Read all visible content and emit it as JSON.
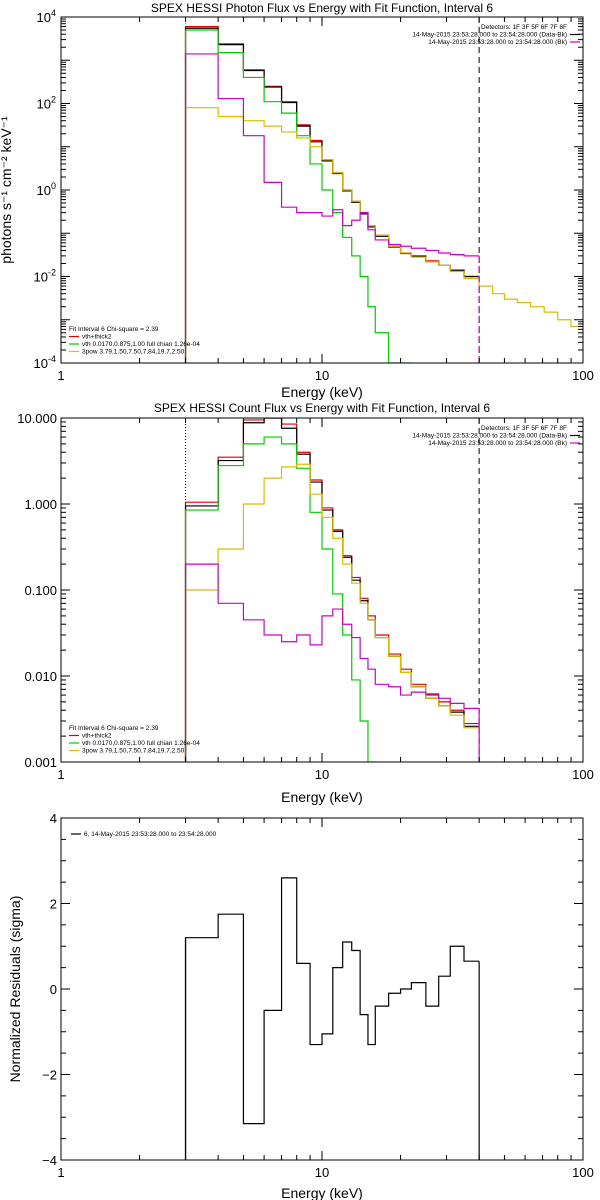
{
  "colors": {
    "black": "#000000",
    "red": "#dd0000",
    "green": "#00cc00",
    "yellow": "#ddbb00",
    "magenta": "#cc00cc"
  },
  "chart_data": [
    {
      "type": "line",
      "title": "SPEX HESSI Photon Flux vs Energy with Fit Function, Interval 6",
      "xlabel": "Energy (keV)",
      "ylabel": "photons s⁻¹ cm⁻² keV⁻¹",
      "xscale": "log",
      "yscale": "log",
      "xlim": [
        1,
        100
      ],
      "ylim": [
        0.0001,
        10000
      ],
      "xticks": [
        {
          "v": 1,
          "label": "1"
        },
        {
          "v": 10,
          "label": "10"
        },
        {
          "v": 100,
          "label": "100"
        }
      ],
      "yticks": [
        {
          "v": 0.0001,
          "base": "10",
          "exp": "-4"
        },
        {
          "v": 0.01,
          "base": "10",
          "exp": "-2"
        },
        {
          "v": 1,
          "base": "10",
          "exp": "0"
        },
        {
          "v": 100,
          "base": "10",
          "exp": "2"
        },
        {
          "v": 10000,
          "base": "10",
          "exp": "4"
        }
      ],
      "legend_tr": [
        {
          "text": "Detectors: 1F 3F 5F 6F 7F 8F",
          "color": ""
        },
        {
          "text": "14-May-2015 23:53:28.000 to 23:54:28.000 (Data-Bk)",
          "color": "#000000"
        },
        {
          "text": "14-May-2015 23:53:28.000 to 23:54:28.000 (Bk)",
          "color": "#cc00cc"
        }
      ],
      "legend_bl": [
        {
          "text": "Fit Interval 6   Chi-square = 2.39",
          "color": ""
        },
        {
          "text": "vth+thick2",
          "color": "#dd0000"
        },
        {
          "text": "vth 0.0170,0.875,1.00  full chian 1.26e-04",
          "color": "#00cc00"
        },
        {
          "text": "3pow 3.79,1.50,7.50,7.84,19.7,2.50",
          "color": "#ddbb00"
        }
      ],
      "vlines": [
        {
          "x": 3,
          "color": "#000000",
          "dash": "1,2"
        },
        {
          "x": 3,
          "color": "#ddbb00",
          "dash": "1,2"
        },
        {
          "x": 40,
          "color": "#000000",
          "dash": "6,4"
        }
      ],
      "series": [
        {
          "color": "#dd0000",
          "edges": [
            3,
            4,
            5,
            6,
            7,
            8,
            9,
            10,
            11,
            12,
            13,
            14,
            15,
            16,
            18,
            20,
            22,
            25,
            28,
            31,
            35,
            40
          ],
          "values": [
            6000,
            2400,
            600,
            250,
            110,
            32,
            14,
            5,
            2.5,
            1,
            0.55,
            0.3,
            0.15,
            0.09,
            0.05,
            0.035,
            0.03,
            0.023,
            0.018,
            0.014,
            0.01
          ]
        },
        {
          "color": "#000000",
          "edges": [
            3,
            4,
            5,
            6,
            7,
            8,
            9,
            10,
            11,
            12,
            13,
            14,
            15,
            16,
            18,
            20,
            22,
            25,
            28,
            31,
            35,
            40
          ],
          "values": [
            5500,
            2300,
            580,
            240,
            105,
            30,
            13,
            4.7,
            2.4,
            0.95,
            0.52,
            0.28,
            0.14,
            0.085,
            0.048,
            0.034,
            0.029,
            0.022,
            0.018,
            0.014,
            0.01
          ]
        },
        {
          "color": "#00cc00",
          "edges": [
            3,
            4,
            5,
            6,
            7,
            8,
            9,
            10,
            11,
            12,
            13,
            14,
            15,
            16,
            18,
            20,
            22
          ],
          "values": [
            5000,
            1500,
            400,
            110,
            60,
            18,
            4,
            1,
            0.3,
            0.08,
            0.03,
            0.01,
            0.002,
            0.0005,
            0.0001,
            5e-05
          ]
        },
        {
          "color": "#ddbb00",
          "edges": [
            3,
            4,
            5,
            6,
            7,
            8,
            9,
            10,
            11,
            12,
            13,
            14,
            15,
            16,
            18,
            20,
            22,
            25,
            28,
            31,
            35,
            40,
            45,
            50,
            56,
            63,
            71,
            80,
            90,
            100
          ],
          "values": [
            80,
            50,
            40,
            30,
            22,
            16,
            10,
            5,
            2.5,
            1,
            0.55,
            0.3,
            0.15,
            0.09,
            0.05,
            0.035,
            0.028,
            0.022,
            0.018,
            0.013,
            0.009,
            0.006,
            0.004,
            0.003,
            0.0025,
            0.002,
            0.0015,
            0.001,
            0.0007
          ]
        },
        {
          "color": "#cc00cc",
          "edges": [
            3,
            4,
            5,
            6,
            7,
            8,
            9,
            10,
            11,
            12,
            13,
            14,
            15,
            16,
            18,
            20,
            22,
            25,
            28,
            31,
            35,
            40
          ],
          "values": [
            1400,
            130,
            18,
            1.5,
            0.4,
            0.3,
            0.3,
            0.25,
            0.35,
            0.15,
            0.2,
            0.3,
            0.12,
            0.07,
            0.055,
            0.05,
            0.045,
            0.04,
            0.035,
            0.032,
            0.03
          ]
        }
      ],
      "series_end_drop": [
        {
          "color": "#cc00cc",
          "x": 40,
          "dash": "6,4"
        }
      ]
    },
    {
      "type": "line",
      "title": "SPEX HESSI Count Flux vs Energy with Fit Function, Interval 6",
      "xlabel": "Energy (keV)",
      "ylabel": "",
      "xscale": "log",
      "yscale": "log",
      "xlim": [
        1,
        100
      ],
      "ylim": [
        0.001,
        10
      ],
      "xticks": [
        {
          "v": 1,
          "label": "1"
        },
        {
          "v": 10,
          "label": "10"
        },
        {
          "v": 100,
          "label": "100"
        }
      ],
      "yticks": [
        {
          "v": 0.001,
          "label": "0.001"
        },
        {
          "v": 0.01,
          "label": "0.010"
        },
        {
          "v": 0.1,
          "label": "0.100"
        },
        {
          "v": 1,
          "label": "1.000"
        },
        {
          "v": 10,
          "label": "10.000"
        }
      ],
      "legend_tr": [
        {
          "text": "Detectors: 1F 3F 5F 6F 7F 8F",
          "color": ""
        },
        {
          "text": "14-May-2015 23:53:28.000 to 23:54:28.000 (Data-Bk)",
          "color": "#000000"
        },
        {
          "text": "14-May-2015 23:53:28.000 to 23:54:28.000 (Bk)",
          "color": "#cc00cc"
        }
      ],
      "legend_bl": [
        {
          "text": "Fit Interval 6   Chi-square = 2.39",
          "color": ""
        },
        {
          "text": "vth+thick2",
          "color": "#dd0000"
        },
        {
          "text": "vth 0.0170,0.875,1.00  full chian 1.26e-04",
          "color": "#00cc00"
        },
        {
          "text": "3pow 3.79,1.50,7.50,7.84,19.7,2.50",
          "color": "#ddbb00"
        }
      ],
      "vlines": [
        {
          "x": 3,
          "color": "#000000",
          "dash": "1,2"
        },
        {
          "x": 40,
          "color": "#000000",
          "dash": "6,4"
        }
      ],
      "series": [
        {
          "color": "#dd0000",
          "edges": [
            3,
            4,
            5,
            6,
            7,
            8,
            9,
            10,
            11,
            12,
            13,
            14,
            15,
            16,
            18,
            20,
            22,
            25,
            28,
            31,
            35,
            40
          ],
          "values": [
            1.05,
            3.5,
            9.5,
            11,
            8.5,
            4,
            1.9,
            0.9,
            0.5,
            0.25,
            0.14,
            0.08,
            0.05,
            0.03,
            0.018,
            0.012,
            0.008,
            0.006,
            0.005,
            0.004,
            0.0028
          ]
        },
        {
          "color": "#000000",
          "edges": [
            3,
            4,
            5,
            6,
            7,
            8,
            9,
            10,
            11,
            12,
            13,
            14,
            15,
            16,
            18,
            20,
            22,
            25,
            28,
            31,
            35,
            40
          ],
          "values": [
            0.95,
            3.2,
            8.8,
            10.2,
            7.6,
            3.8,
            1.8,
            0.85,
            0.48,
            0.24,
            0.13,
            0.075,
            0.045,
            0.028,
            0.017,
            0.011,
            0.0075,
            0.0055,
            0.0045,
            0.0038,
            0.0026
          ]
        },
        {
          "color": "#00cc00",
          "edges": [
            3,
            4,
            5,
            6,
            7,
            8,
            9,
            10,
            11,
            12,
            13,
            14,
            15,
            16
          ],
          "values": [
            0.85,
            2.8,
            5,
            6,
            5,
            2.6,
            0.8,
            0.3,
            0.09,
            0.03,
            0.009,
            0.003,
            0.0008
          ]
        },
        {
          "color": "#ddbb00",
          "edges": [
            3,
            4,
            5,
            6,
            7,
            8,
            9,
            10,
            11,
            12,
            13,
            14,
            15,
            16,
            18,
            20,
            22,
            25,
            28,
            31,
            35,
            40
          ],
          "values": [
            0.1,
            0.3,
            1,
            2,
            2.7,
            2.9,
            1.3,
            0.7,
            0.4,
            0.2,
            0.12,
            0.07,
            0.045,
            0.028,
            0.017,
            0.011,
            0.0075,
            0.0055,
            0.0045,
            0.0035,
            0.0025
          ]
        },
        {
          "color": "#cc00cc",
          "edges": [
            3,
            4,
            5,
            6,
            7,
            8,
            9,
            10,
            11,
            12,
            13,
            14,
            15,
            16,
            18,
            20,
            22,
            25,
            28,
            31,
            35,
            40
          ],
          "values": [
            0.2,
            0.07,
            0.045,
            0.03,
            0.025,
            0.03,
            0.023,
            0.05,
            0.06,
            0.04,
            0.028,
            0.016,
            0.012,
            0.008,
            0.0075,
            0.006,
            0.0065,
            0.0062,
            0.0055,
            0.0048,
            0.0042
          ]
        }
      ],
      "series_end_drop": [
        {
          "color": "#cc00cc",
          "x": 40,
          "dash": ""
        }
      ]
    },
    {
      "type": "line",
      "title": "",
      "xlabel": "Energy (keV)",
      "ylabel": "Normalized Residuals (sigma)",
      "xscale": "log",
      "yscale": "linear",
      "xlim": [
        1,
        100
      ],
      "ylim": [
        -4,
        4
      ],
      "xticks": [
        {
          "v": 1,
          "label": "1"
        },
        {
          "v": 10,
          "label": "10"
        },
        {
          "v": 100,
          "label": "100"
        }
      ],
      "yticks": [
        {
          "v": -4,
          "label": "−4"
        },
        {
          "v": -2,
          "label": "−2"
        },
        {
          "v": 0,
          "label": "0"
        },
        {
          "v": 2,
          "label": "2"
        },
        {
          "v": 4,
          "label": "4"
        }
      ],
      "legend_tl": [
        {
          "text": "6, 14-May-2015 23:53:28.000 to 23:54:28.000",
          "color": "#000000"
        }
      ],
      "series": [
        {
          "color": "#000000",
          "edges": [
            3,
            4,
            5,
            6,
            7,
            8,
            9,
            10,
            11,
            12,
            13,
            14,
            15,
            16,
            18,
            20,
            22,
            25,
            28,
            31,
            35,
            40
          ],
          "values": [
            1.2,
            1.75,
            -3.15,
            -0.5,
            2.6,
            0.6,
            -1.3,
            -1.05,
            0.5,
            1.1,
            0.9,
            -0.6,
            -1.3,
            -0.4,
            -0.1,
            0,
            0.15,
            -0.4,
            0.3,
            1.0,
            0.65
          ]
        }
      ],
      "edge_drops": [
        {
          "x": 3,
          "color": "#000000"
        },
        {
          "x": 40,
          "color": "#000000"
        }
      ]
    }
  ]
}
